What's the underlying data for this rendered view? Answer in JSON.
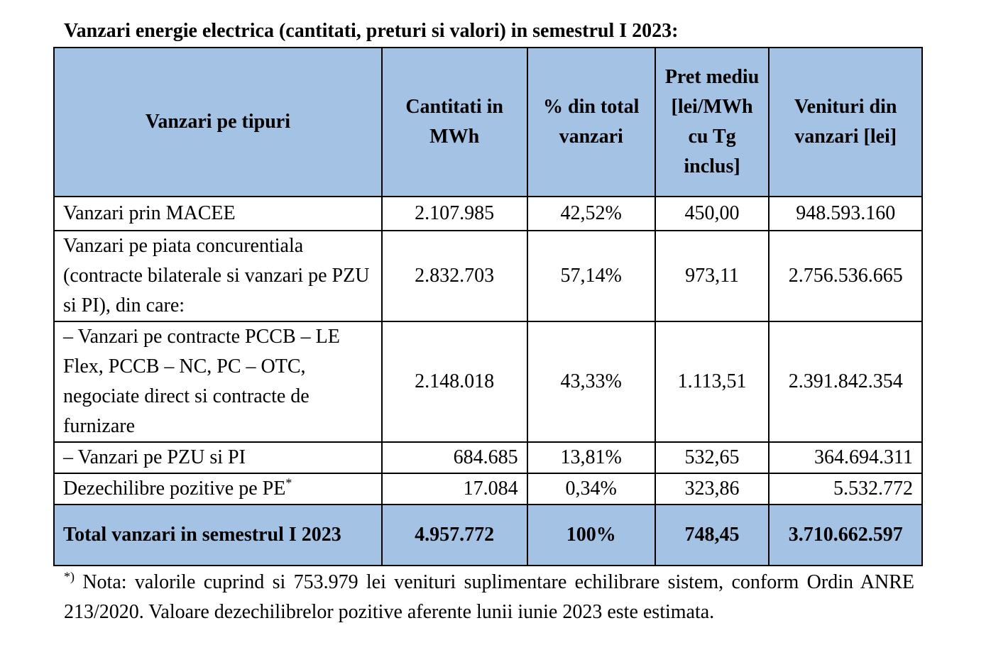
{
  "title": "Vanzari energie electrica (cantitati, preturi si valori) in semestrul I 2023:",
  "table": {
    "headers": [
      "Vanzari pe tipuri",
      "Cantitati in MWh",
      "% din total vanzari",
      "Pret mediu [lei/MWh cu Tg inclus]",
      "Venituri din vanzari [lei]"
    ],
    "rows": [
      {
        "label": "Vanzari prin MACEE",
        "cantitate": "2.107.985",
        "procent": "42,52%",
        "pret": "450,00",
        "venituri": "948.593.160"
      },
      {
        "label": "Vanzari pe piata concurentiala (contracte bilaterale si vanzari pe PZU si PI), din care:",
        "cantitate": "2.832.703",
        "procent": "57,14%",
        "pret": "973,11",
        "venituri": "2.756.536.665"
      },
      {
        "label": "– Vanzari pe contracte PCCB – LE Flex, PCCB – NC, PC – OTC, negociate direct si contracte de furnizare",
        "cantitate": "2.148.018",
        "procent": "43,33%",
        "pret": "1.113,51",
        "venituri": "2.391.842.354"
      },
      {
        "label": "– Vanzari pe PZU si PI",
        "cantitate": "684.685",
        "procent": "13,81%",
        "pret": "532,65",
        "venituri": "364.694.311"
      },
      {
        "label": "Dezechilibre pozitive pe PE",
        "label_mark": "*",
        "cantitate": "17.084",
        "procent": "0,34%",
        "pret": "323,86",
        "venituri": "5.532.772"
      }
    ],
    "total": {
      "label": "Total vanzari in semestrul I 2023",
      "cantitate": "4.957.772",
      "procent": "100%",
      "pret": "748,45",
      "venituri": "3.710.662.597"
    }
  },
  "note": {
    "mark": "*)",
    "text": " Nota: valorile cuprind si 753.979 lei venituri suplimentare echilibrare sistem, conform Ordin ANRE 213/2020. Valoare dezechilibrelor pozitive aferente lunii iunie 2023 este estimata."
  },
  "colors": {
    "header_fill": "#a4c2e4",
    "border": "#000000"
  }
}
